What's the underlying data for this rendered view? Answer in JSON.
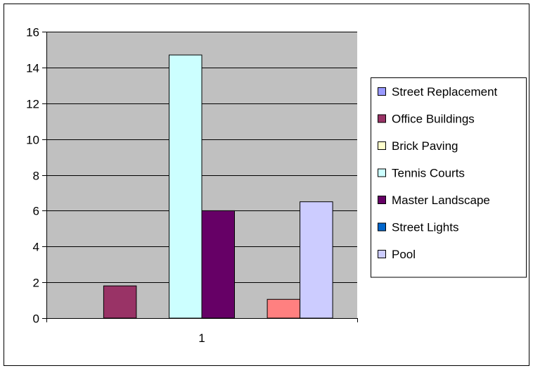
{
  "chart_data": {
    "type": "bar",
    "categories": [
      "1"
    ],
    "ylim": [
      0,
      16
    ],
    "yticks": [
      0,
      2,
      4,
      6,
      8,
      10,
      12,
      14,
      16
    ],
    "grid": true,
    "legend_position": "right",
    "series": [
      {
        "name": "Street Replacement",
        "values": [
          0
        ],
        "color": "#9999ff"
      },
      {
        "name": "Office Buildings",
        "values": [
          1.8
        ],
        "color": "#993366"
      },
      {
        "name": "Brick Paving",
        "values": [
          0
        ],
        "color": "#ffffcc"
      },
      {
        "name": "Tennis Courts",
        "values": [
          14.7
        ],
        "color": "#ccffff"
      },
      {
        "name": "Master Landscape",
        "values": [
          6
        ],
        "color": "#660066"
      },
      {
        "name": "Street Lights",
        "values": [
          0
        ],
        "color": "#0066cc"
      },
      {
        "name": "",
        "values": [
          1.05
        ],
        "color": "#ff8080"
      },
      {
        "name": "Pool",
        "values": [
          6.5
        ],
        "color": "#ccccff"
      }
    ],
    "plot_background": "#c0c0c0"
  }
}
